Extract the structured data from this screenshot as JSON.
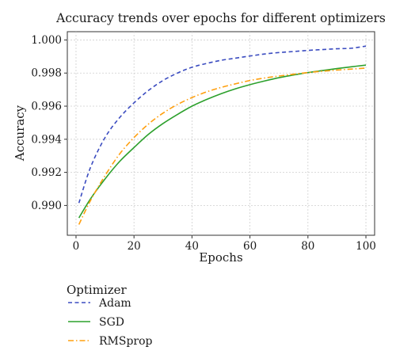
{
  "chart_data": {
    "type": "line",
    "title": "Accuracy trends over epochs for different optimizers",
    "xlabel": "Epochs",
    "ylabel": "Accuracy",
    "xlim": [
      -3,
      103
    ],
    "ylim": [
      0.9882,
      1.0005
    ],
    "xticks": [
      0,
      20,
      40,
      60,
      80,
      100
    ],
    "yticks": [
      0.99,
      0.992,
      0.994,
      0.996,
      0.998,
      1.0
    ],
    "xtick_labels": [
      "0",
      "20",
      "40",
      "60",
      "80",
      "100"
    ],
    "ytick_labels": [
      "0.990",
      "0.992",
      "0.994",
      "0.996",
      "0.998",
      "1.000"
    ],
    "grid": true,
    "legend": {
      "title": "Optimizer",
      "placement": "below"
    },
    "x": [
      1,
      5,
      10,
      15,
      20,
      25,
      30,
      35,
      40,
      45,
      50,
      55,
      60,
      65,
      70,
      75,
      80,
      85,
      90,
      95,
      100
    ],
    "series": [
      {
        "name": "Adam",
        "color": "#3b4cc0",
        "dash": "dashed",
        "values": [
          0.99015,
          0.9923,
          0.9941,
          0.9953,
          0.9962,
          0.99695,
          0.99755,
          0.998,
          0.99835,
          0.99858,
          0.99877,
          0.9989,
          0.99903,
          0.99915,
          0.99924,
          0.9993,
          0.99937,
          0.99942,
          0.99947,
          0.9995,
          0.99963
        ]
      },
      {
        "name": "SGD",
        "color": "#2ca02c",
        "dash": "solid",
        "values": [
          0.98925,
          0.9904,
          0.9916,
          0.99265,
          0.9935,
          0.9943,
          0.99495,
          0.9955,
          0.996,
          0.9964,
          0.99675,
          0.99705,
          0.9973,
          0.99752,
          0.99772,
          0.99788,
          0.99803,
          0.99815,
          0.99827,
          0.99838,
          0.99848
        ]
      },
      {
        "name": "RMSprop",
        "color": "#ff9f0e",
        "dash": "dashdot",
        "values": [
          0.98885,
          0.9903,
          0.9918,
          0.9931,
          0.9941,
          0.99492,
          0.99558,
          0.9961,
          0.99652,
          0.99686,
          0.99713,
          0.99735,
          0.99755,
          0.9977,
          0.99782,
          0.99793,
          0.99803,
          0.99811,
          0.99818,
          0.99824,
          0.9983
        ]
      }
    ]
  }
}
